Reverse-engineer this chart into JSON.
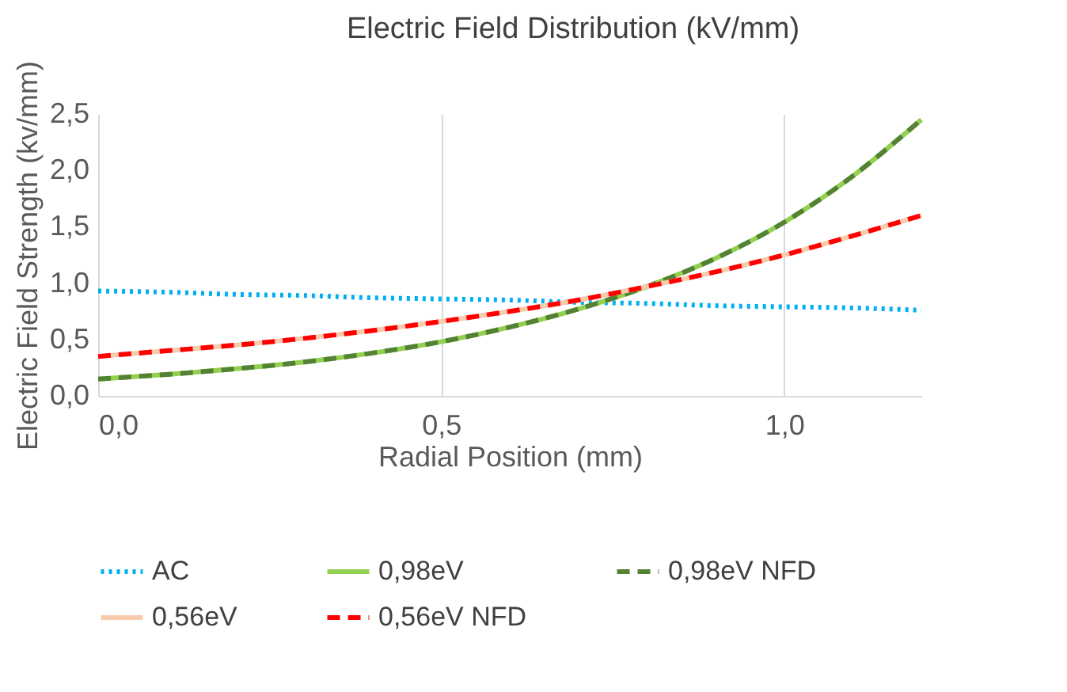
{
  "chart_data": {
    "type": "line",
    "title": "Electric Field Distribution (kV/mm)",
    "xlabel": "Radial Position (mm)",
    "ylabel": "Electric Field Strength (kv/mm)",
    "x": [
      0,
      0.1,
      0.2,
      0.3,
      0.4,
      0.5,
      0.6,
      0.7,
      0.8,
      0.9,
      1.0,
      1.1,
      1.2
    ],
    "series": [
      {
        "name": "AC",
        "color": "#00b0f0",
        "line_style": "dotted",
        "values": [
          0.93,
          0.92,
          0.9,
          0.89,
          0.87,
          0.86,
          0.85,
          0.83,
          0.82,
          0.8,
          0.79,
          0.78,
          0.76
        ]
      },
      {
        "name": "0,98eV",
        "color": "#92d050",
        "line_style": "solid",
        "values": [
          0.15,
          0.19,
          0.24,
          0.3,
          0.38,
          0.48,
          0.61,
          0.77,
          0.97,
          1.22,
          1.54,
          1.95,
          2.45
        ]
      },
      {
        "name": "0,98eV NFD",
        "color": "#548235",
        "line_style": "dashed",
        "values": [
          0.15,
          0.19,
          0.24,
          0.3,
          0.38,
          0.48,
          0.61,
          0.77,
          0.97,
          1.22,
          1.54,
          1.95,
          2.45
        ]
      },
      {
        "name": "0,56eV",
        "color": "#f8cbad",
        "line_style": "solid",
        "values": [
          0.35,
          0.4,
          0.45,
          0.51,
          0.58,
          0.66,
          0.75,
          0.85,
          0.97,
          1.1,
          1.25,
          1.42,
          1.6
        ]
      },
      {
        "name": "0,56eV NFD",
        "color": "#ff0000",
        "line_style": "dashed",
        "values": [
          0.35,
          0.4,
          0.45,
          0.51,
          0.58,
          0.66,
          0.75,
          0.85,
          0.97,
          1.1,
          1.25,
          1.42,
          1.6
        ]
      }
    ],
    "xlim": [
      0,
      1.2
    ],
    "xticks": [
      {
        "value": 0,
        "label": "0,0"
      },
      {
        "value": 0.5,
        "label": "0,5"
      },
      {
        "value": 1.0,
        "label": "1,0"
      }
    ],
    "ylim": [
      0,
      2.5
    ],
    "yticks": [
      {
        "value": 0,
        "label": "0,0"
      },
      {
        "value": 0.5,
        "label": "0,5"
      },
      {
        "value": 1.0,
        "label": "1,0"
      },
      {
        "value": 1.5,
        "label": "1,5"
      },
      {
        "value": 2.0,
        "label": "2,0"
      },
      {
        "value": 2.5,
        "label": "2,5"
      }
    ],
    "grid": "x",
    "legend": "bottom",
    "marker": "none"
  }
}
